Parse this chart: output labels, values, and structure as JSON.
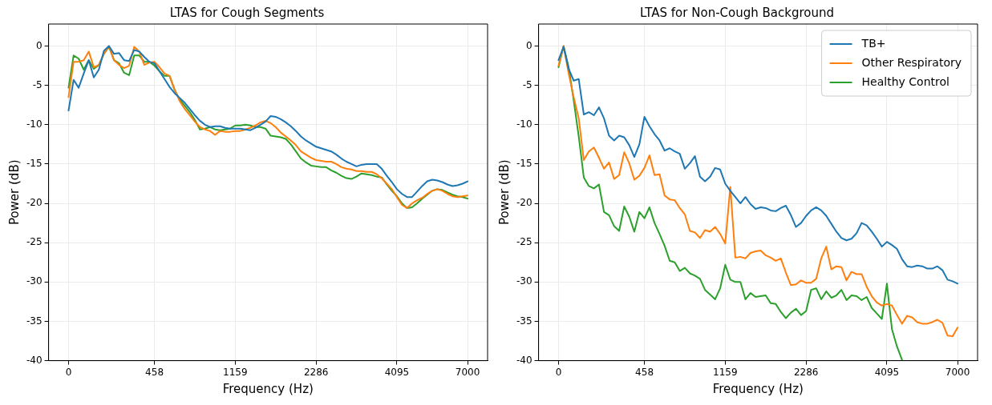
{
  "chart_data": [
    {
      "type": "line",
      "title": "LTAS for Cough Segments",
      "xlabel": "Frequency (Hz)",
      "ylabel": "Power (dB)",
      "categories": [
        "0",
        null,
        null,
        null,
        null,
        null,
        null,
        null,
        null,
        null,
        null,
        null,
        null,
        null,
        null,
        null,
        null,
        "458",
        null,
        null,
        null,
        null,
        null,
        null,
        null,
        null,
        null,
        null,
        null,
        null,
        null,
        null,
        null,
        "1159",
        null,
        null,
        null,
        null,
        null,
        null,
        null,
        null,
        null,
        null,
        null,
        null,
        null,
        null,
        null,
        "2286",
        null,
        null,
        null,
        null,
        null,
        null,
        null,
        null,
        null,
        null,
        null,
        null,
        null,
        null,
        null,
        "4095",
        null,
        null,
        null,
        null,
        null,
        null,
        null,
        null,
        null,
        null,
        null,
        null,
        null,
        "7000"
      ],
      "ylim": [
        -40,
        2.8
      ],
      "yticks": [
        -40,
        -35,
        -30,
        -25,
        -20,
        -15,
        -10,
        -5,
        0
      ],
      "grid": true,
      "series": [
        {
          "color": "#1f77b4",
          "values": [
            -8.2,
            -4.3,
            -5.3,
            -3.5,
            -1.8,
            -4.0,
            -3.0,
            -0.6,
            0,
            -1.0,
            -0.9,
            -1.8,
            -1.9,
            -0.5,
            -0.7,
            -1.4,
            -2.0,
            -2.2,
            -3.2,
            -4.2,
            -5.2,
            -6.0,
            -6.6,
            -7.2,
            -8.0,
            -8.8,
            -9.5,
            -10.0,
            -10.3,
            -10.2,
            -10.2,
            -10.4,
            -10.5,
            -10.5,
            -10.5,
            -10.6,
            -10.7,
            -10.4,
            -10.0,
            -9.6,
            -8.9,
            -9.0,
            -9.3,
            -9.7,
            -10.2,
            -10.8,
            -11.5,
            -12.0,
            -12.4,
            -12.8,
            -13.0,
            -13.2,
            -13.4,
            -13.8,
            -14.3,
            -14.7,
            -15.0,
            -15.3,
            -15.1,
            -15.0,
            -15.0,
            -15.0,
            -15.6,
            -16.5,
            -17.3,
            -18.2,
            -18.8,
            -19.2,
            -19.2,
            -18.5,
            -17.8,
            -17.2,
            -17.0,
            -17.1,
            -17.3,
            -17.6,
            -17.8,
            -17.7,
            -17.5,
            -17.2
          ]
        },
        {
          "color": "#ff7f0e",
          "values": [
            -6.5,
            -2.0,
            -2.0,
            -1.8,
            -0.7,
            -2.7,
            -2.4,
            -1.0,
            0,
            -1.8,
            -2.4,
            -2.8,
            -2.5,
            -0.1,
            -0.7,
            -2.4,
            -2.1,
            -2.0,
            -2.7,
            -3.5,
            -3.8,
            -5.5,
            -7.0,
            -8.0,
            -8.8,
            -9.6,
            -10.3,
            -10.6,
            -10.8,
            -11.3,
            -10.8,
            -10.9,
            -10.9,
            -10.8,
            -10.8,
            -10.6,
            -10.4,
            -10.1,
            -9.7,
            -9.5,
            -9.8,
            -10.3,
            -11.0,
            -11.5,
            -12.0,
            -12.6,
            -13.4,
            -13.8,
            -14.2,
            -14.5,
            -14.6,
            -14.7,
            -14.7,
            -15.0,
            -15.4,
            -15.6,
            -15.7,
            -15.9,
            -15.9,
            -16.0,
            -16.0,
            -16.3,
            -16.8,
            -17.5,
            -18.2,
            -19.2,
            -20.2,
            -20.6,
            -20.0,
            -19.6,
            -19.3,
            -18.8,
            -18.4,
            -18.2,
            -18.4,
            -18.8,
            -19.1,
            -19.2,
            -19.1,
            -19.0
          ]
        },
        {
          "color": "#2ca02c",
          "values": [
            -5.3,
            -1.2,
            -1.6,
            -3.0,
            -1.8,
            -2.9,
            -2.4,
            -1.0,
            -0.1,
            -1.8,
            -2.2,
            -3.4,
            -3.7,
            -1.2,
            -1.2,
            -2.0,
            -2.0,
            -2.5,
            -3.2,
            -3.8,
            -3.8,
            -5.6,
            -6.8,
            -7.6,
            -8.4,
            -9.4,
            -10.6,
            -10.5,
            -10.3,
            -10.6,
            -10.7,
            -10.6,
            -10.5,
            -10.1,
            -10.1,
            -10.0,
            -10.1,
            -10.3,
            -10.3,
            -10.5,
            -11.4,
            -11.5,
            -11.6,
            -11.8,
            -12.5,
            -13.4,
            -14.3,
            -14.8,
            -15.2,
            -15.3,
            -15.4,
            -15.4,
            -15.8,
            -16.1,
            -16.5,
            -16.8,
            -16.9,
            -16.6,
            -16.2,
            -16.3,
            -16.4,
            -16.6,
            -16.7,
            -17.6,
            -18.4,
            -19.1,
            -20.0,
            -20.6,
            -20.5,
            -20.0,
            -19.4,
            -18.9,
            -18.4,
            -18.2,
            -18.3,
            -18.6,
            -18.9,
            -19.1,
            -19.2,
            -19.4
          ]
        }
      ]
    },
    {
      "type": "line",
      "title": "LTAS for Non-Cough Background",
      "xlabel": "Frequency (Hz)",
      "ylabel": "Power (dB)",
      "categories": [
        "0",
        null,
        null,
        null,
        null,
        null,
        null,
        null,
        null,
        null,
        null,
        null,
        null,
        null,
        null,
        null,
        null,
        "458",
        null,
        null,
        null,
        null,
        null,
        null,
        null,
        null,
        null,
        null,
        null,
        null,
        null,
        null,
        null,
        "1159",
        null,
        null,
        null,
        null,
        null,
        null,
        null,
        null,
        null,
        null,
        null,
        null,
        null,
        null,
        null,
        "2286",
        null,
        null,
        null,
        null,
        null,
        null,
        null,
        null,
        null,
        null,
        null,
        null,
        null,
        null,
        null,
        "4095",
        null,
        null,
        null,
        null,
        null,
        null,
        null,
        null,
        null,
        null,
        null,
        null,
        null,
        "7000"
      ],
      "ylim": [
        -40,
        2.8
      ],
      "yticks": [
        -40,
        -35,
        -30,
        -25,
        -20,
        -15,
        -10,
        -5,
        0
      ],
      "grid": true,
      "legend": "top right",
      "series": [
        {
          "name": "TB+",
          "color": "#1f77b4",
          "values": [
            -1.8,
            -0.1,
            -2.9,
            -4.4,
            -4.2,
            -8.7,
            -8.4,
            -8.8,
            -7.8,
            -9.2,
            -11.4,
            -12.0,
            -11.4,
            -11.6,
            -12.6,
            -14.1,
            -12.5,
            -9.0,
            -10.2,
            -11.2,
            -12.0,
            -13.3,
            -13.0,
            -13.4,
            -13.7,
            -15.6,
            -14.9,
            -14.0,
            -16.6,
            -17.2,
            -16.6,
            -15.5,
            -15.7,
            -17.5,
            -18.4,
            -19.2,
            -20.0,
            -19.2,
            -20.1,
            -20.7,
            -20.5,
            -20.6,
            -20.9,
            -21.0,
            -20.6,
            -20.3,
            -21.5,
            -23.0,
            -22.5,
            -21.6,
            -20.9,
            -20.5,
            -20.9,
            -21.6,
            -22.6,
            -23.6,
            -24.4,
            -24.7,
            -24.5,
            -23.8,
            -22.5,
            -22.8,
            -23.6,
            -24.5,
            -25.5,
            -24.9,
            -25.3,
            -25.8,
            -27.1,
            -28.0,
            -28.1,
            -27.9,
            -28.0,
            -28.3,
            -28.3,
            -28.0,
            -28.5,
            -29.7,
            -29.9,
            -30.2
          ]
        },
        {
          "name": "Other Respiratory",
          "color": "#ff7f0e",
          "values": [
            -2.5,
            0,
            -3.5,
            -6.5,
            -9.2,
            -14.5,
            -13.4,
            -12.9,
            -14.2,
            -15.6,
            -14.8,
            -16.9,
            -16.4,
            -13.5,
            -14.9,
            -17.0,
            -16.5,
            -15.5,
            -13.9,
            -16.4,
            -16.3,
            -19.0,
            -19.5,
            -19.6,
            -20.6,
            -21.4,
            -23.5,
            -23.7,
            -24.4,
            -23.4,
            -23.6,
            -23.0,
            -23.9,
            -25.1,
            -17.9,
            -26.9,
            -26.8,
            -27.0,
            -26.3,
            -26.1,
            -26.0,
            -26.6,
            -26.9,
            -27.3,
            -27.0,
            -28.8,
            -30.4,
            -30.3,
            -29.8,
            -30.1,
            -30.1,
            -29.6,
            -27.0,
            -25.5,
            -28.4,
            -28.0,
            -28.1,
            -29.8,
            -28.7,
            -29.0,
            -29.0,
            -30.6,
            -31.8,
            -32.6,
            -33.0,
            -32.8,
            -33.0,
            -34.2,
            -35.3,
            -34.3,
            -34.5,
            -35.1,
            -35.3,
            -35.3,
            -35.1,
            -34.8,
            -35.2,
            -36.8,
            -36.9,
            -35.8
          ]
        },
        {
          "name": "Healthy Control",
          "color": "#2ca02c",
          "values": [
            -2.7,
            0,
            -2.7,
            -6.9,
            -11.5,
            -16.7,
            -17.8,
            -18.1,
            -17.6,
            -21.1,
            -21.5,
            -22.9,
            -23.5,
            -20.4,
            -21.7,
            -23.6,
            -21.1,
            -21.9,
            -20.5,
            -22.5,
            -23.9,
            -25.4,
            -27.3,
            -27.5,
            -28.6,
            -28.2,
            -28.9,
            -29.2,
            -29.6,
            -31.0,
            -31.6,
            -32.2,
            -30.8,
            -27.8,
            -29.7,
            -30.0,
            -30.0,
            -32.2,
            -31.4,
            -31.9,
            -31.8,
            -31.7,
            -32.7,
            -32.8,
            -33.8,
            -34.6,
            -33.9,
            -33.4,
            -34.2,
            -33.7,
            -31.0,
            -30.8,
            -32.2,
            -31.2,
            -32.0,
            -31.7,
            -31.0,
            -32.3,
            -31.7,
            -31.8,
            -32.3,
            -31.9,
            -33.3,
            -34.0,
            -34.7,
            -30.2,
            -36.0,
            -38.2,
            -39.9,
            null,
            null,
            null,
            null,
            null,
            null,
            null,
            null,
            null,
            null,
            null
          ]
        }
      ]
    }
  ]
}
